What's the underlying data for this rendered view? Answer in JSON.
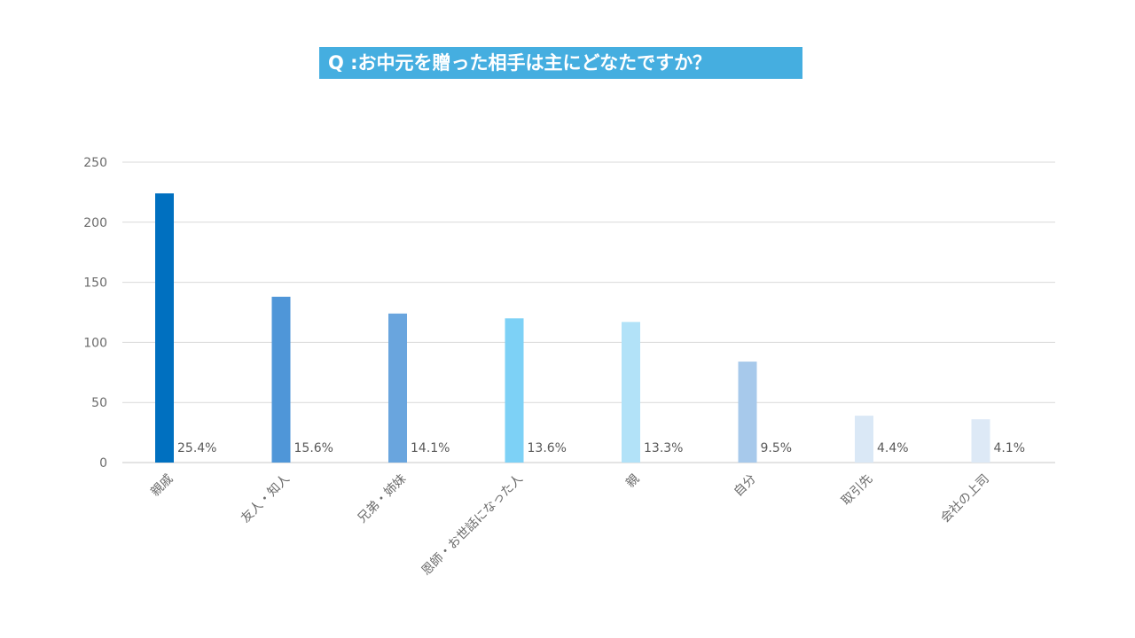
{
  "title": "Q :お中元を贈った相手は主にどなたですか？",
  "chart_data": {
    "type": "bar",
    "title": "Q :お中元を贈った相手は主にどなたですか？",
    "categories": [
      "親戚",
      "友人・知人",
      "兄弟・姉妹",
      "恩師・お世話になった人",
      "親",
      "自分",
      "取引先",
      "会社の上司"
    ],
    "values": [
      224,
      138,
      124,
      120,
      117,
      84,
      39,
      36
    ],
    "data_labels": [
      "25.4%",
      "15.6%",
      "14.1%",
      "13.6%",
      "13.3%",
      "9.5%",
      "4.4%",
      "4.1%"
    ],
    "colors": [
      "#0070c0",
      "#4f96d8",
      "#69a5de",
      "#7dd1f6",
      "#b2e2f8",
      "#a7c9eb",
      "#dae8f6",
      "#dde9f6"
    ],
    "yticks": [
      0,
      50,
      100,
      150,
      200,
      250
    ],
    "ylim": [
      0,
      250
    ],
    "xlabel": "",
    "ylabel": "",
    "grid": true,
    "legend": "none"
  }
}
